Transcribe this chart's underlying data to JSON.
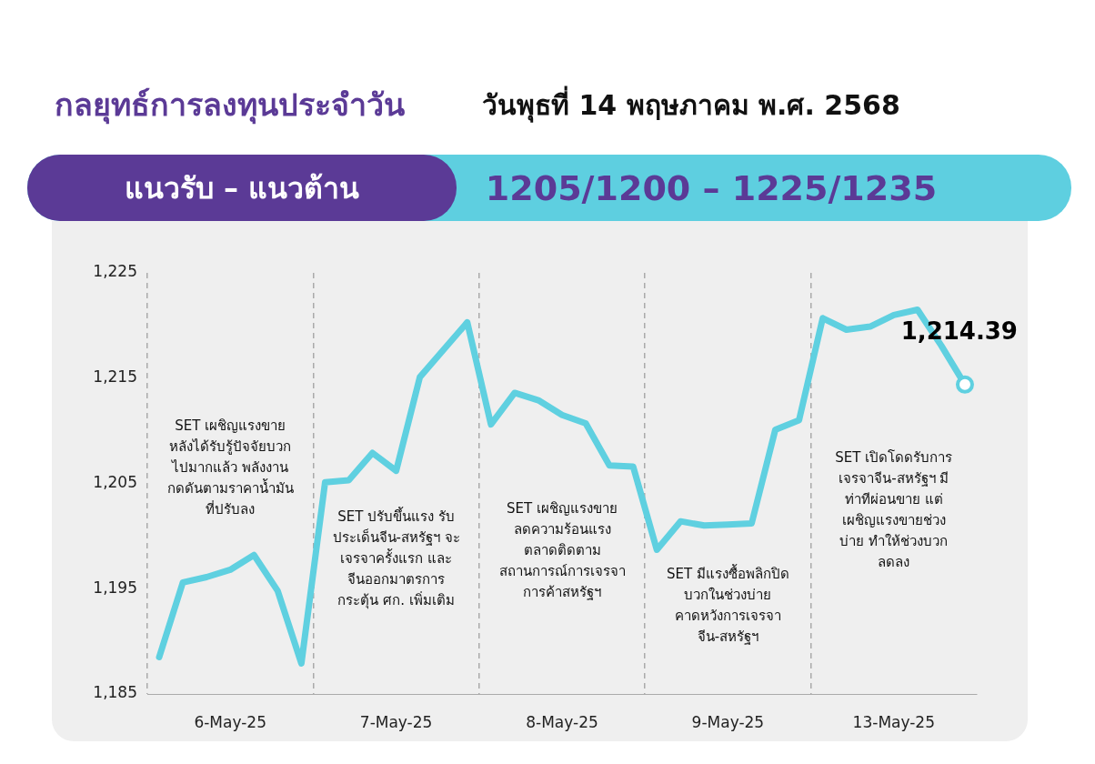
{
  "chart_data": {
    "type": "line",
    "title": "กลยุทธ์การลงทุนประจำวัน",
    "subtitle": "วันพุธที่ 14 พฤษภาคม พ.ศ. 2568",
    "annotations": [
      "แนวรับ – แนวต้าน",
      "1205/1200 – 1225/1235",
      "SET เผชิญแรงขาย\nหลังได้รับรู้ปัจจัยบวก\nไปมากแล้ว พลังงาน\nกดดันตามราคาน้ำมัน\nที่ปรับลง",
      "SET ปรับขึ้นแรง รับ\nประเด็นจีน-สหรัฐฯ จะ\nเจรจาครั้งแรก และ\nจีนออกมาตรการ\nกระตุ้น ศก. เพิ่มเติม",
      "SET เผชิญแรงขาย\nลดความร้อนแรง\nตลาดติดตาม\nสถานการณ์การเจรจา\nการค้าสหรัฐฯ",
      "SET มีแรงซื้อพลิกปิด\nบวกในช่วงบ่าย\nคาดหวังการเจรจา\nจีน-สหรัฐฯ",
      "SET เปิดโดดรับการ\nเจรจาจีน-สหรัฐฯ มี\nท่าทีผ่อนขาย แต่\nเผชิญแรงขายช่วง\nบ่าย ทำให้ช่วงบวก\nลดลง",
      {
        "text": "1,214.39",
        "y": 1214.39
      }
    ],
    "categories": [
      null,
      null,
      null,
      "6-May-25",
      null,
      null,
      null,
      null,
      null,
      null,
      "7-May-25",
      null,
      null,
      null,
      null,
      null,
      null,
      "8-May-25",
      null,
      null,
      null,
      null,
      null,
      null,
      "9-May-25",
      null,
      null,
      null,
      null,
      null,
      null,
      "13-May-25",
      null,
      null,
      null
    ],
    "series": [
      {
        "color": "#5fd0e0",
        "values": [
          1188.5,
          1195.6,
          1196.1,
          1196.8,
          1198.2,
          1194.8,
          1187.9,
          1205.1,
          1205.3,
          1207.9,
          1206.2,
          1215.1,
          1217.7,
          1220.3,
          1210.6,
          1213.6,
          1212.9,
          1211.5,
          1210.7,
          1206.7,
          1206.6,
          1198.7,
          1201.4,
          1201.0,
          1201.1,
          1201.2,
          1210.1,
          1211.0,
          1220.7,
          1219.6,
          1219.9,
          1221.0,
          1221.5,
          1218.1,
          1214.39
        ]
      }
    ],
    "ylim": [
      1185,
      1225
    ],
    "yticks": [
      {
        "value": 1185,
        "label": "1,185"
      },
      {
        "value": 1195,
        "label": "1,195"
      },
      {
        "value": 1205,
        "label": "1,205"
      },
      {
        "value": 1215,
        "label": "1,215"
      },
      {
        "value": 1225,
        "label": "1,225"
      }
    ],
    "grid": "x",
    "legend": false,
    "marker": "none",
    "line_style": "solid"
  }
}
